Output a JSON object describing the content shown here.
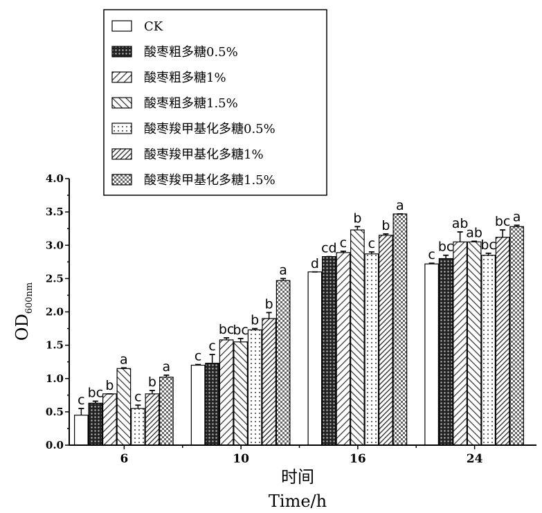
{
  "chart_data": {
    "type": "bar",
    "categories": [
      "6",
      "10",
      "16",
      "24"
    ],
    "series": [
      {
        "name": "CK",
        "pattern": "white",
        "values": [
          0.45,
          1.2,
          2.6,
          2.72
        ],
        "errors": [
          0.1,
          0.01,
          0.0,
          0.01
        ],
        "letters": [
          "c",
          "c",
          "d",
          "c"
        ]
      },
      {
        "name": "酸枣粗多糖0.5%",
        "pattern": "dots-dense",
        "values": [
          0.63,
          1.23,
          2.83,
          2.8
        ],
        "errors": [
          0.03,
          0.13,
          0.0,
          0.05
        ],
        "letters": [
          "bc",
          "c",
          "cd",
          "bc"
        ]
      },
      {
        "name": "酸枣粗多糖1%",
        "pattern": "diag-right",
        "values": [
          0.77,
          1.58,
          2.89,
          3.05
        ],
        "errors": [
          0.0,
          0.03,
          0.02,
          0.15
        ],
        "letters": [
          "b",
          "bc",
          "c",
          "ab"
        ]
      },
      {
        "name": "酸枣粗多糖1.5%",
        "pattern": "diag-left",
        "values": [
          1.15,
          1.55,
          3.23,
          3.05
        ],
        "errors": [
          0.01,
          0.05,
          0.05,
          0.01
        ],
        "letters": [
          "a",
          "bc",
          "b",
          "ab"
        ]
      },
      {
        "name": "酸枣羧甲基化多糖0.5%",
        "pattern": "dots-sparse",
        "values": [
          0.55,
          1.73,
          2.87,
          2.85
        ],
        "errors": [
          0.05,
          0.02,
          0.03,
          0.03
        ],
        "letters": [
          "c",
          "b",
          "c",
          "bc"
        ]
      },
      {
        "name": "酸枣羧甲基化多糖1%",
        "pattern": "diag-right-dense",
        "values": [
          0.77,
          1.9,
          3.15,
          3.12
        ],
        "errors": [
          0.05,
          0.09,
          0.02,
          0.11
        ],
        "letters": [
          "b",
          "b",
          "b",
          "bc"
        ]
      },
      {
        "name": "酸枣羧甲基化多糖1.5%",
        "pattern": "checker",
        "values": [
          1.02,
          2.47,
          3.47,
          3.28
        ],
        "errors": [
          0.03,
          0.03,
          0.0,
          0.02
        ],
        "letters": [
          "a",
          "a",
          "a",
          "a"
        ]
      }
    ],
    "y_ticks": [
      "0.0",
      "0.5",
      "1.0",
      "1.5",
      "2.0",
      "2.5",
      "3.0",
      "3.5",
      "4.0"
    ],
    "ylim": [
      0,
      4.0
    ],
    "ylabel_main": "OD",
    "ylabel_sub": "600nm",
    "xlabel_cn": "时间",
    "xlabel_en": "Time/h",
    "legend_position": "top-left"
  }
}
